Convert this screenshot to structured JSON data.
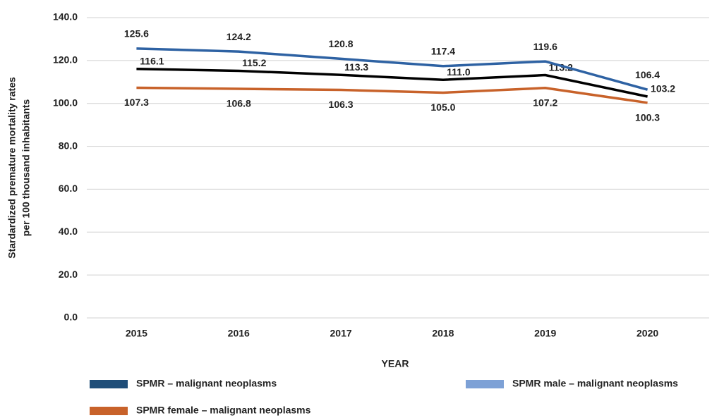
{
  "chart_data": {
    "type": "line",
    "y_label": [
      "Stardardized premature mortality rates",
      "per 100 thousand inhabitants"
    ],
    "x_label": "YEAR",
    "categories": [
      "2015",
      "2016",
      "2017",
      "2018",
      "2019",
      "2020"
    ],
    "series": [
      {
        "name": "SPMR – malignant neoplasms",
        "color": "#000000",
        "legend_color": "#1f4e79",
        "values": [
          116.1,
          115.2,
          113.3,
          111.0,
          113.2,
          103.2
        ],
        "value_labels": [
          "116.1",
          "115.2",
          "113.3",
          "111.0",
          "113.2",
          "103.2"
        ]
      },
      {
        "name": "SPMR male – malignant neoplasms",
        "color": "#2e62a3",
        "legend_color": "#7da1d6",
        "values": [
          125.6,
          124.2,
          120.8,
          117.4,
          119.6,
          106.4
        ],
        "value_labels": [
          "125.6",
          "124.2",
          "120.8",
          "117.4",
          "119.6",
          "106.4"
        ]
      },
      {
        "name": "SPMR female – malignant neoplasms",
        "color": "#c8622a",
        "legend_color": "#c8622a",
        "values": [
          107.3,
          106.8,
          106.3,
          105.0,
          107.2,
          100.3
        ],
        "value_labels": [
          "107.3",
          "106.8",
          "106.3",
          "105.0",
          "107.2",
          "100.3"
        ]
      }
    ],
    "ylim": [
      0,
      140
    ],
    "yticks": [
      {
        "value": 0,
        "label": "0.0"
      },
      {
        "value": 20,
        "label": "20.0"
      },
      {
        "value": 40,
        "label": "40.0"
      },
      {
        "value": 60,
        "label": "60.0"
      },
      {
        "value": 80,
        "label": "80.0"
      },
      {
        "value": 100,
        "label": "100.0"
      },
      {
        "value": 120,
        "label": "120.0"
      },
      {
        "value": 140,
        "label": "140.0"
      }
    ],
    "grid": true
  }
}
